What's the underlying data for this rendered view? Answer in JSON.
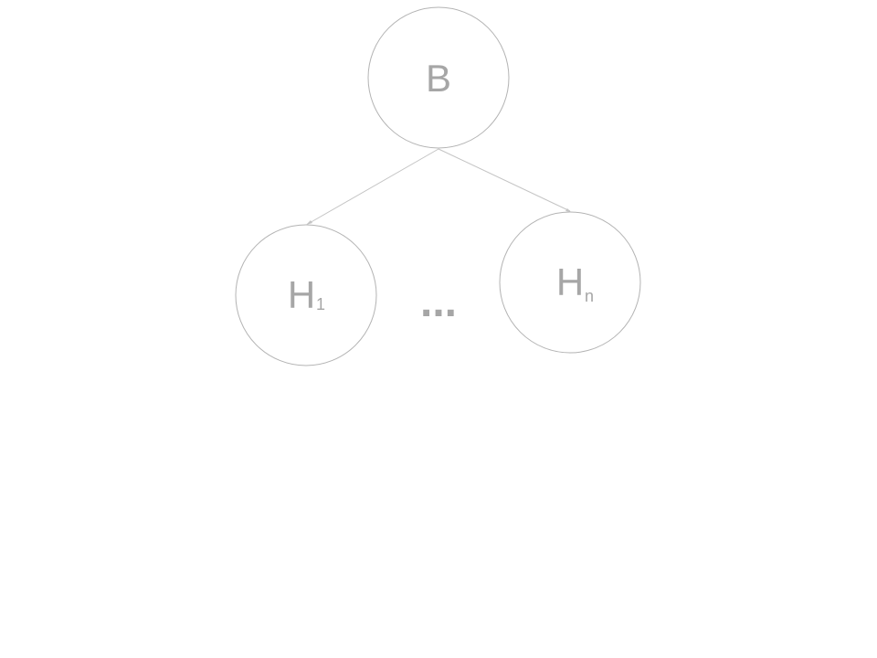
{
  "diagram": {
    "root": {
      "label": "B"
    },
    "children": [
      {
        "label": "H",
        "subscript": "1"
      },
      {
        "label": "H",
        "subscript": "n"
      }
    ],
    "ellipsis": "...",
    "colors": {
      "stroke": "#b3b3b3",
      "edge": "#c4c4c4",
      "text": "#a6a6a6",
      "background": "#ffffff"
    }
  }
}
